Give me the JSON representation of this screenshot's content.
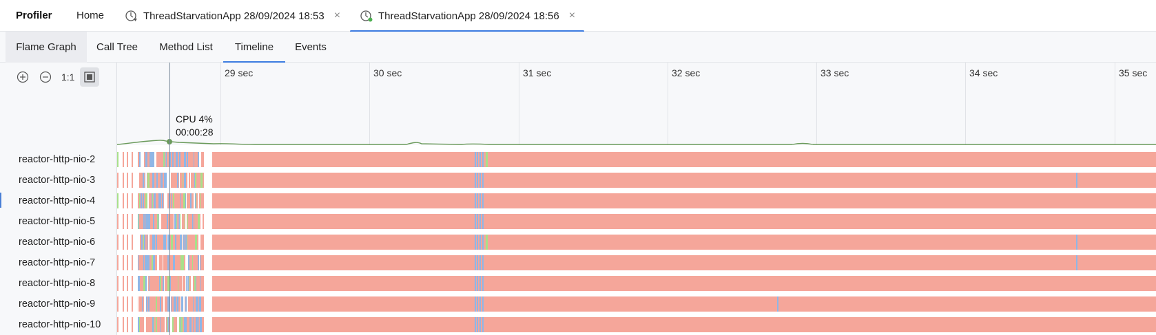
{
  "topbar": {
    "app_title": "Profiler",
    "home_tab": "Home",
    "sessions": [
      {
        "label": "ThreadStarvationApp 28/09/2024 18:53",
        "active": false
      },
      {
        "label": "ThreadStarvationApp 28/09/2024 18:56",
        "active": true
      }
    ],
    "close_glyph": "×"
  },
  "subtabs": [
    {
      "label": "Flame Graph",
      "state": "selected"
    },
    {
      "label": "Call Tree",
      "state": ""
    },
    {
      "label": "Method List",
      "state": ""
    },
    {
      "label": "Timeline",
      "state": "active"
    },
    {
      "label": "Events",
      "state": ""
    }
  ],
  "controls": {
    "zoom_in_icon": "zoom-in-icon",
    "zoom_out_icon": "zoom-out-icon",
    "actual_size_label": "1:1",
    "fit_icon": "fit-to-screen-icon"
  },
  "timeline": {
    "ticks": [
      "29 sec",
      "30 sec",
      "31 sec",
      "32 sec",
      "33 sec",
      "34 sec",
      "35 sec"
    ],
    "cpu_tooltip": {
      "cpu": "CPU 4%",
      "time": "00:00:28"
    }
  },
  "threads": [
    "reactor-http-nio-2",
    "reactor-http-nio-3",
    "reactor-http-nio-4",
    "reactor-http-nio-5",
    "reactor-http-nio-6",
    "reactor-http-nio-7",
    "reactor-http-nio-8",
    "reactor-http-nio-9",
    "reactor-http-nio-10"
  ],
  "colors": {
    "accent": "#3c7be0",
    "running": "#f5a69a",
    "waiting": "#8fb6e6",
    "sleeping": "#a8e08a",
    "cpu_line": "#6a9a5a"
  }
}
